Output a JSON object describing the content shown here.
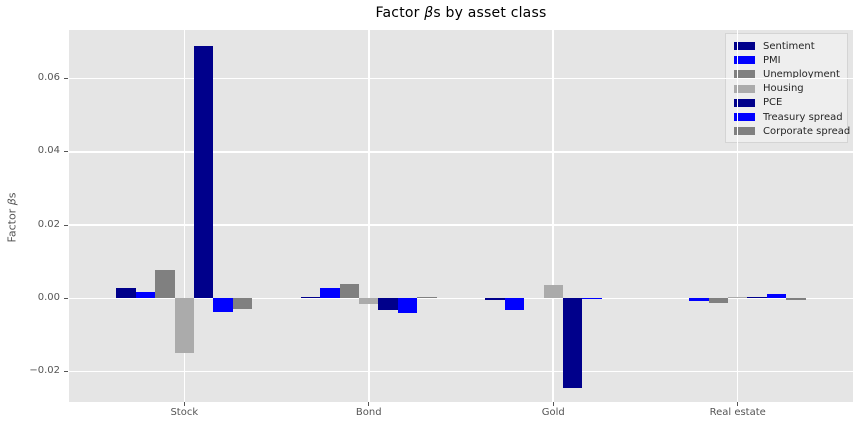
{
  "chart_data": {
    "type": "bar",
    "title": {
      "prefix": "Factor ",
      "beta": "β",
      "suffix": "s by asset class"
    },
    "ylabel": {
      "prefix": "Factor ",
      "beta": "β",
      "suffix": "s"
    },
    "categories": [
      "Stock",
      "Bond",
      "Gold",
      "Real estate"
    ],
    "series": [
      {
        "name": "Sentiment",
        "color": "#00008b",
        "values": [
          0.0028,
          0.0003,
          -0.0005,
          0.0001
        ]
      },
      {
        "name": "PMI",
        "color": "#0000ff",
        "values": [
          0.0017,
          0.0027,
          -0.0032,
          -0.0006
        ]
      },
      {
        "name": "Unemployment",
        "color": "#808080",
        "values": [
          0.0077,
          0.004,
          0.0,
          -0.0012
        ]
      },
      {
        "name": "Housing",
        "color": "#ababab",
        "values": [
          -0.0148,
          -0.0016,
          0.0037,
          0.0002
        ]
      },
      {
        "name": "PCE",
        "color": "#00008b",
        "values": [
          0.0688,
          -0.0033,
          -0.0245,
          0.0005
        ]
      },
      {
        "name": "Treasury spread",
        "color": "#0000ff",
        "values": [
          -0.0038,
          -0.0039,
          -0.0003,
          0.0012
        ]
      },
      {
        "name": "Corporate spread",
        "color": "#808080",
        "values": [
          -0.0028,
          0.0002,
          0.0,
          -0.0005
        ]
      }
    ],
    "yticks": [
      {
        "label": "0.06",
        "value": 0.06
      },
      {
        "label": "0.04",
        "value": 0.04
      },
      {
        "label": "0.02",
        "value": 0.02
      },
      {
        "label": "0.00",
        "value": 0.0
      },
      {
        "label": "−0.02",
        "value": -0.02
      }
    ],
    "ylim": [
      -0.0283,
      0.0733
    ],
    "xlim": [
      -0.625,
      3.625
    ],
    "grid": true,
    "legend_position": "upper right",
    "style": {
      "plot_bg": "#e5e5e5",
      "grid_color": "#ffffff",
      "tick_color": "#555555",
      "title_color": "#000000"
    }
  }
}
